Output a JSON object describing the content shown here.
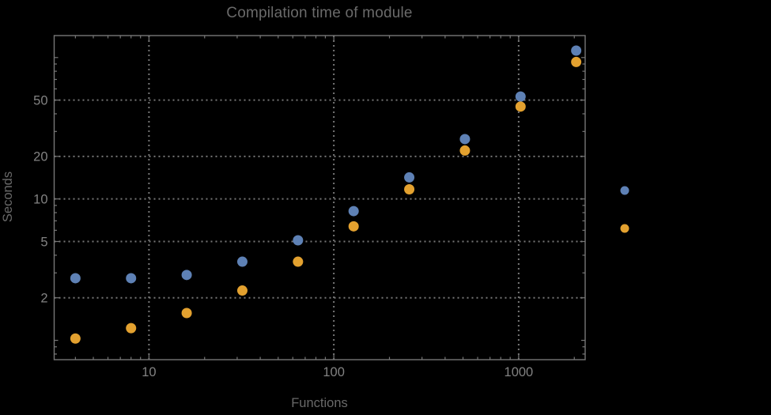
{
  "chart_data": {
    "type": "scatter",
    "title": "Compilation time of module",
    "xlabel": "Functions",
    "ylabel": "Seconds",
    "x_scale": "log",
    "y_scale": "log",
    "xlim": [
      3.07,
      2290
    ],
    "ylim": [
      0.73,
      143
    ],
    "x_ticks": [
      10,
      100,
      1000
    ],
    "y_ticks": [
      2,
      5,
      10,
      20,
      50
    ],
    "grid": "dotted",
    "legend": {
      "position": "right-outside",
      "labels_visible": false
    },
    "x": [
      4,
      8,
      16,
      32,
      64,
      128,
      256,
      512,
      1024,
      2048
    ],
    "series": [
      {
        "name": "series-1",
        "color": "#5E81B5",
        "values": [
          2.75,
          2.75,
          2.9,
          3.6,
          5.1,
          8.2,
          14.2,
          26.5,
          53,
          112
        ]
      },
      {
        "name": "series-2",
        "color": "#E3A12F",
        "values": [
          1.03,
          1.22,
          1.56,
          2.25,
          3.6,
          6.4,
          11.7,
          22,
          45,
          93
        ]
      }
    ]
  },
  "colors": {
    "background": "#000000",
    "frame": "#777777",
    "grid": "#767676",
    "tick_label": "#828282",
    "title": "#6a6a6a",
    "axis_label": "#696969"
  }
}
